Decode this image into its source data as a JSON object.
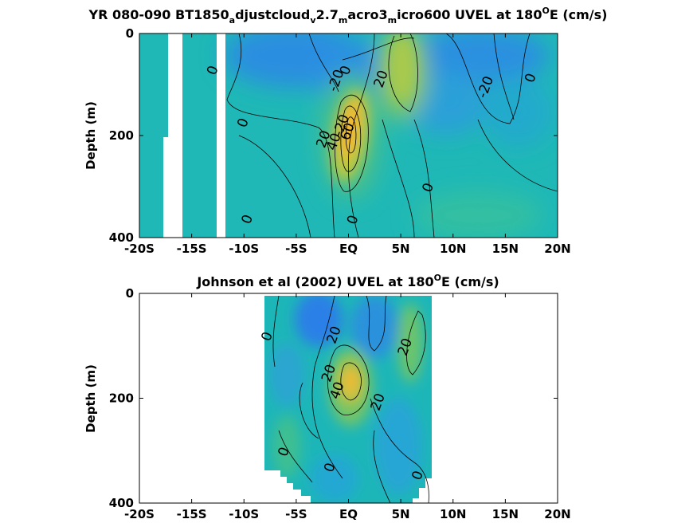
{
  "chart_data": [
    {
      "type": "contour",
      "title_parts": [
        "YR 080-090 BT1850",
        "a",
        "djustcloud",
        "v",
        "2.7",
        "m",
        "acro3",
        "m",
        "icro600 UVEL at 180",
        "O",
        "E (cm/s)"
      ],
      "ylabel": "Depth (m)",
      "xlabel": "",
      "xlim": [
        -20,
        20
      ],
      "ylim": [
        0,
        400
      ],
      "y_reversed": true,
      "x_ticks": [
        -20,
        -15,
        -10,
        -5,
        0,
        5,
        10,
        15,
        20
      ],
      "x_tick_labels": [
        "-20S",
        "-15S",
        "-10S",
        "-5S",
        "EQ",
        "5N",
        "10N",
        "15N",
        "20N"
      ],
      "y_ticks": [
        0,
        200,
        400
      ],
      "y_tick_labels": [
        "0",
        "200",
        "400"
      ],
      "contour_levels": [
        -20,
        0,
        20,
        40,
        60
      ],
      "contour_labels": [
        {
          "text": "0",
          "x": -12.6,
          "y": 75
        },
        {
          "text": "-20",
          "x": -0.8,
          "y": 95
        },
        {
          "text": "0",
          "x": 0.1,
          "y": 75
        },
        {
          "text": "20",
          "x": 3.5,
          "y": 92
        },
        {
          "text": "-20",
          "x": 13.5,
          "y": 108
        },
        {
          "text": "0",
          "x": 17.8,
          "y": 90
        },
        {
          "text": "0",
          "x": -9.7,
          "y": 178
        },
        {
          "text": "-20",
          "x": -0.3,
          "y": 183
        },
        {
          "text": "60",
          "x": 0.3,
          "y": 195
        },
        {
          "text": "40",
          "x": -1.0,
          "y": 215
        },
        {
          "text": "20",
          "x": -2.0,
          "y": 210
        },
        {
          "text": "0",
          "x": 8.0,
          "y": 305
        },
        {
          "text": "0",
          "x": 0.8,
          "y": 368
        },
        {
          "text": "0",
          "x": -9.3,
          "y": 367
        }
      ]
    },
    {
      "type": "contour",
      "title_parts": [
        "Johnson et al (2002) UVEL at 180",
        "O",
        "E (cm/s)"
      ],
      "ylabel": "Depth (m)",
      "xlabel": "",
      "xlim": [
        -20,
        20
      ],
      "ylim": [
        0,
        400
      ],
      "y_reversed": true,
      "x_ticks": [
        -20,
        -15,
        -10,
        -5,
        0,
        5,
        10,
        15,
        20
      ],
      "x_tick_labels": [
        "-20S",
        "-15S",
        "-10S",
        "-5S",
        "EQ",
        "5N",
        "10N",
        "15N",
        "20N"
      ],
      "y_ticks": [
        0,
        200,
        400
      ],
      "y_tick_labels": [
        "0",
        "200",
        "400"
      ],
      "data_extent_x": [
        -8,
        8
      ],
      "contour_levels": [
        -20,
        0,
        20,
        40
      ],
      "contour_labels": [
        {
          "text": "0",
          "x": -7.4,
          "y": 85
        },
        {
          "text": "20",
          "x": -1.0,
          "y": 82
        },
        {
          "text": "20",
          "x": 5.8,
          "y": 105
        },
        {
          "text": "20",
          "x": -1.5,
          "y": 155
        },
        {
          "text": "40",
          "x": -0.7,
          "y": 188
        },
        {
          "text": "20",
          "x": 3.2,
          "y": 210
        },
        {
          "text": "0",
          "x": -5.8,
          "y": 305
        },
        {
          "text": "0",
          "x": -1.4,
          "y": 335
        },
        {
          "text": "0",
          "x": 7.0,
          "y": 350
        }
      ]
    }
  ]
}
